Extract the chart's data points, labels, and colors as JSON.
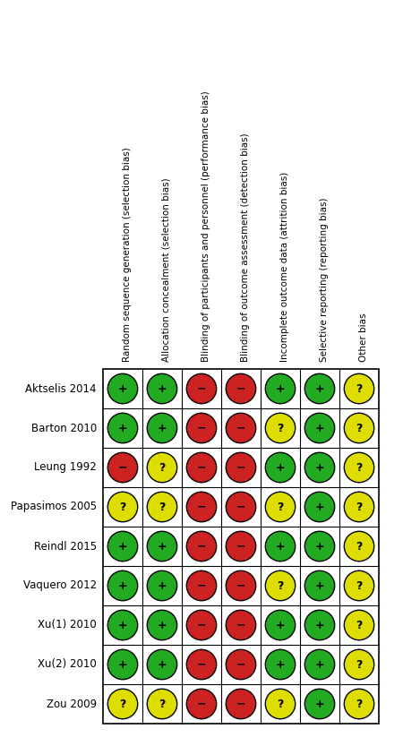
{
  "studies": [
    "Aktselis 2014",
    "Barton 2010",
    "Leung 1992",
    "Papasimos 2005",
    "Reindl 2015",
    "Vaquero 2012",
    "Xu(1) 2010",
    "Xu(2) 2010",
    "Zou 2009"
  ],
  "columns": [
    "Random sequence generation (selection bias)",
    "Allocation concealment (selection bias)",
    "Blinding of participants and personnel (performance bias)",
    "Blinding of outcome assessment (detection bias)",
    "Incomplete outcome data (attrition bias)",
    "Selective reporting (reporting bias)",
    "Other bias"
  ],
  "ratings": [
    [
      "+",
      "+",
      "-",
      "-",
      "+",
      "+",
      "?"
    ],
    [
      "+",
      "+",
      "-",
      "-",
      "?",
      "+",
      "?"
    ],
    [
      "-",
      "?",
      "-",
      "-",
      "+",
      "+",
      "?"
    ],
    [
      "?",
      "?",
      "-",
      "-",
      "?",
      "+",
      "?"
    ],
    [
      "+",
      "+",
      "-",
      "-",
      "+",
      "+",
      "?"
    ],
    [
      "+",
      "+",
      "-",
      "-",
      "?",
      "+",
      "?"
    ],
    [
      "+",
      "+",
      "-",
      "-",
      "+",
      "+",
      "?"
    ],
    [
      "+",
      "+",
      "-",
      "-",
      "+",
      "+",
      "?"
    ],
    [
      "?",
      "?",
      "-",
      "-",
      "?",
      "+",
      "?"
    ]
  ],
  "color_map": {
    "+": "#22AA22",
    "-": "#CC2222",
    "?": "#DDDD00"
  },
  "symbol_color": "#000000",
  "bg_color": "#FFFFFF",
  "border_color": "#000000",
  "study_label_fontsize": 8.5,
  "col_label_fontsize": 7.5,
  "symbol_fontsize": 9,
  "figsize": [
    4.5,
    8.33
  ],
  "dpi": 100
}
